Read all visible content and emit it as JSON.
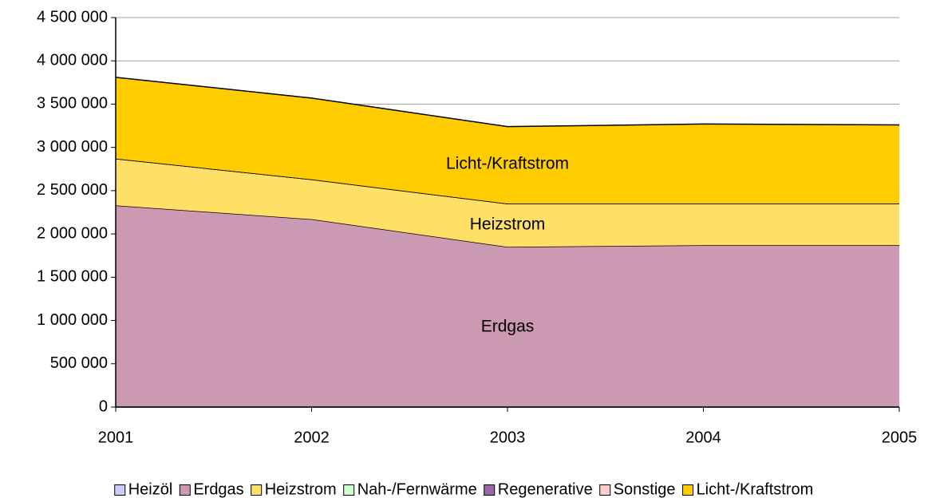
{
  "chart_data": {
    "type": "area",
    "categories": [
      "2001",
      "2002",
      "2003",
      "2004",
      "2005"
    ],
    "series": [
      {
        "name": "Heizöl",
        "color": "#ccccff",
        "values": [
          0,
          0,
          0,
          0,
          0
        ]
      },
      {
        "name": "Erdgas",
        "color": "#cc99b3",
        "values": [
          2330000,
          2170000,
          1850000,
          1870000,
          1870000
        ]
      },
      {
        "name": "Heizstrom",
        "color": "#ffe066",
        "values": [
          540000,
          460000,
          500000,
          480000,
          480000
        ]
      },
      {
        "name": "Nah-/Fernwärme",
        "color": "#ccffcc",
        "values": [
          0,
          0,
          0,
          0,
          0
        ]
      },
      {
        "name": "Regenerative",
        "color": "#9966aa",
        "values": [
          0,
          0,
          0,
          0,
          0
        ]
      },
      {
        "name": "Sonstige",
        "color": "#ffcccc",
        "values": [
          0,
          0,
          0,
          0,
          0
        ]
      },
      {
        "name": "Licht-/Kraftstrom",
        "color": "#ffcc00",
        "values": [
          940000,
          940000,
          890000,
          920000,
          910000
        ]
      }
    ],
    "annotations": [
      "Licht-/Kraftstrom",
      "Heizstrom",
      "Erdgas"
    ],
    "ylim": [
      0,
      4500000
    ],
    "yticks": [
      0,
      {
        "value": 500000,
        "label": "500 000"
      },
      {
        "value": 1000000,
        "label": "1 000 000"
      },
      {
        "value": 1500000,
        "label": "1 500 000"
      },
      {
        "value": 2000000,
        "label": "2 000 000"
      },
      {
        "value": 2500000,
        "label": "2 500 000"
      },
      {
        "value": 3000000,
        "label": "3 000 000"
      },
      {
        "value": 3500000,
        "label": "3 500 000"
      },
      {
        "value": 4000000,
        "label": "4 000 000"
      },
      {
        "value": 4500000,
        "label": "4 500 000"
      }
    ],
    "grid": true,
    "legend": "bottom"
  }
}
